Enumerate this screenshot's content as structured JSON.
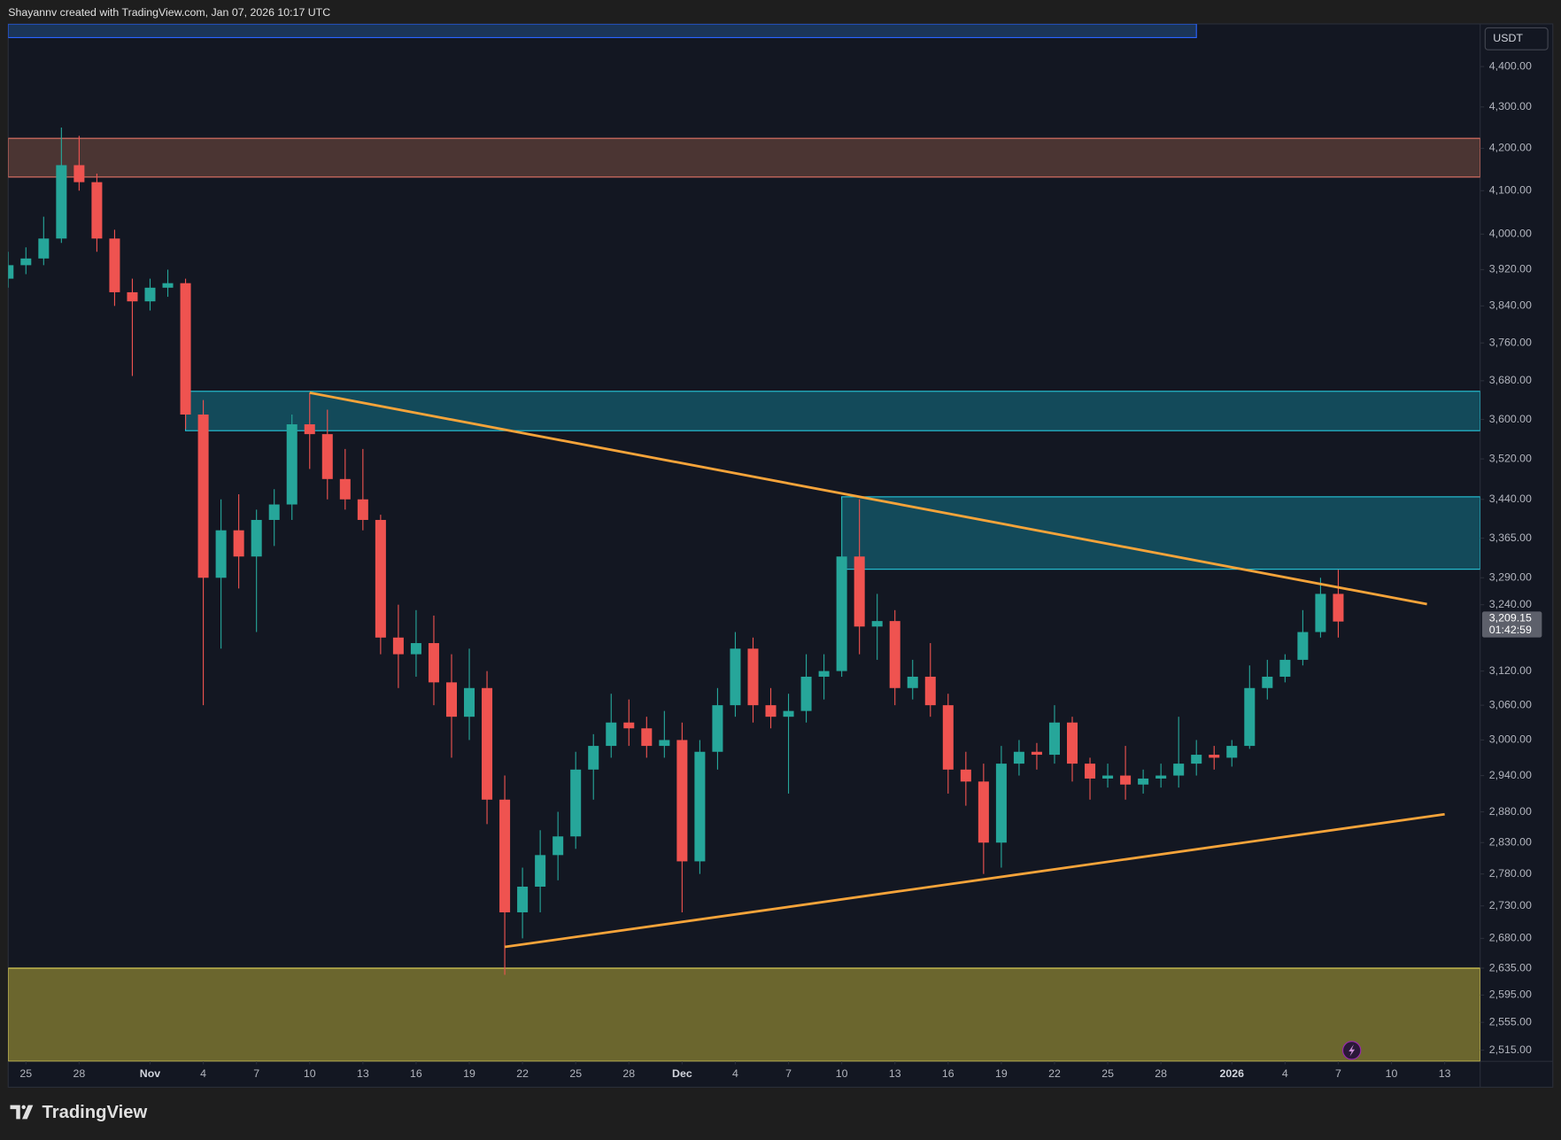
{
  "header": {
    "text": "Shayannv created with TradingView.com, Jan 07, 2026 10:17 UTC"
  },
  "footer": {
    "brand": "TradingView"
  },
  "chart_data": {
    "type": "candlestick",
    "currency": "USDT",
    "log_scale": true,
    "grid": false,
    "up_color": "#26a69a",
    "down_color": "#ef5350",
    "x": [
      "Oct 24",
      "Oct 25",
      "Oct 26",
      "Oct 27",
      "Oct 28",
      "Oct 29",
      "Oct 30",
      "Oct 31",
      "Nov 1",
      "Nov 2",
      "Nov 3",
      "Nov 4",
      "Nov 5",
      "Nov 6",
      "Nov 7",
      "Nov 8",
      "Nov 9",
      "Nov 10",
      "Nov 11",
      "Nov 12",
      "Nov 13",
      "Nov 14",
      "Nov 15",
      "Nov 16",
      "Nov 17",
      "Nov 18",
      "Nov 19",
      "Nov 20",
      "Nov 21",
      "Nov 22",
      "Nov 23",
      "Nov 24",
      "Nov 25",
      "Nov 26",
      "Nov 27",
      "Nov 28",
      "Nov 29",
      "Nov 30",
      "Dec 1",
      "Dec 2",
      "Dec 3",
      "Dec 4",
      "Dec 5",
      "Dec 6",
      "Dec 7",
      "Dec 8",
      "Dec 9",
      "Dec 10",
      "Dec 11",
      "Dec 12",
      "Dec 13",
      "Dec 14",
      "Dec 15",
      "Dec 16",
      "Dec 17",
      "Dec 18",
      "Dec 19",
      "Dec 20",
      "Dec 21",
      "Dec 22",
      "Dec 23",
      "Dec 24",
      "Dec 25",
      "Dec 26",
      "Dec 27",
      "Dec 28",
      "Dec 29",
      "Dec 30",
      "Dec 31",
      "Jan 1",
      "Jan 2",
      "Jan 3",
      "Jan 4",
      "Jan 5",
      "Jan 6",
      "Jan 7"
    ],
    "open": [
      3900,
      3930,
      3945,
      3990,
      4160,
      4120,
      3990,
      3870,
      3850,
      3880,
      3890,
      3610,
      3290,
      3380,
      3330,
      3400,
      3430,
      3590,
      3570,
      3480,
      3440,
      3400,
      3180,
      3150,
      3170,
      3100,
      3040,
      3090,
      2900,
      2720,
      2760,
      2810,
      2840,
      2950,
      2990,
      3030,
      3020,
      2990,
      3000,
      2800,
      2980,
      3060,
      3160,
      3060,
      3040,
      3050,
      3110,
      3120,
      3330,
      3200,
      3210,
      3090,
      3110,
      3060,
      2950,
      2930,
      2830,
      2960,
      2980,
      2975,
      3030,
      2960,
      2935,
      2940,
      2925,
      2935,
      2940,
      2960,
      2975,
      2970,
      2990,
      3090,
      3110,
      3140,
      3190,
      3260
    ],
    "high": [
      3960,
      3970,
      4040,
      4250,
      4230,
      4140,
      4010,
      3900,
      3900,
      3920,
      3900,
      3640,
      3440,
      3450,
      3420,
      3460,
      3610,
      3655,
      3620,
      3540,
      3540,
      3410,
      3240,
      3230,
      3220,
      3150,
      3160,
      3120,
      2940,
      2790,
      2850,
      2880,
      2980,
      3010,
      3080,
      3070,
      3040,
      3050,
      3030,
      3000,
      3090,
      3190,
      3180,
      3090,
      3080,
      3150,
      3150,
      3440,
      3440,
      3260,
      3230,
      3140,
      3170,
      3080,
      2980,
      2960,
      2990,
      3000,
      2995,
      3060,
      3040,
      2970,
      2960,
      2990,
      2950,
      2960,
      3040,
      3000,
      2990,
      3000,
      3130,
      3140,
      3150,
      3230,
      3290,
      3305
    ],
    "low": [
      3880,
      3910,
      3930,
      3980,
      4100,
      3960,
      3840,
      3690,
      3830,
      3860,
      3580,
      3060,
      3160,
      3270,
      3190,
      3350,
      3400,
      3500,
      3440,
      3420,
      3380,
      3150,
      3090,
      3110,
      3060,
      2970,
      3000,
      2860,
      2625,
      2680,
      2720,
      2770,
      2820,
      2900,
      2970,
      2990,
      2970,
      2970,
      2720,
      2780,
      2950,
      3040,
      3030,
      3020,
      2910,
      3030,
      3070,
      3110,
      3150,
      3140,
      3060,
      3070,
      3040,
      2910,
      2890,
      2780,
      2790,
      2940,
      2950,
      2960,
      2930,
      2900,
      2920,
      2900,
      2910,
      2920,
      2920,
      2940,
      2950,
      2955,
      2985,
      3070,
      3100,
      3130,
      3180,
      3180
    ],
    "close": [
      3930,
      3945,
      3990,
      4160,
      4120,
      3990,
      3870,
      3850,
      3880,
      3890,
      3610,
      3290,
      3380,
      3330,
      3400,
      3430,
      3590,
      3570,
      3480,
      3440,
      3400,
      3180,
      3150,
      3170,
      3100,
      3040,
      3090,
      2900,
      2720,
      2760,
      2810,
      2840,
      2950,
      2990,
      3030,
      3020,
      2990,
      3000,
      2800,
      2980,
      3060,
      3160,
      3060,
      3040,
      3050,
      3110,
      3120,
      3330,
      3200,
      3210,
      3090,
      3110,
      3060,
      2950,
      2930,
      2830,
      2960,
      2980,
      2975,
      3030,
      2960,
      2935,
      2940,
      2925,
      2935,
      2940,
      2960,
      2975,
      2970,
      2990,
      3090,
      3110,
      3140,
      3190,
      3260,
      3209.15
    ],
    "xlim": [
      "Oct 24",
      "Jan 15"
    ],
    "ylim": [
      2499,
      4508
    ],
    "yticks": [
      {
        "value": 4400,
        "label": "4,400.00"
      },
      {
        "value": 4300,
        "label": "4,300.00"
      },
      {
        "value": 4200,
        "label": "4,200.00"
      },
      {
        "value": 4100,
        "label": "4,100.00"
      },
      {
        "value": 4000,
        "label": "4,000.00"
      },
      {
        "value": 3920,
        "label": "3,920.00"
      },
      {
        "value": 3840,
        "label": "3,840.00"
      },
      {
        "value": 3760,
        "label": "3,760.00"
      },
      {
        "value": 3680,
        "label": "3,680.00"
      },
      {
        "value": 3600,
        "label": "3,600.00"
      },
      {
        "value": 3520,
        "label": "3,520.00"
      },
      {
        "value": 3440,
        "label": "3,440.00"
      },
      {
        "value": 3365,
        "label": "3,365.00"
      },
      {
        "value": 3290,
        "label": "3,290.00"
      },
      {
        "value": 3240,
        "label": "3,240.00"
      },
      {
        "value": 3120,
        "label": "3,120.00"
      },
      {
        "value": 3060,
        "label": "3,060.00"
      },
      {
        "value": 3000,
        "label": "3,000.00"
      },
      {
        "value": 2940,
        "label": "2,940.00"
      },
      {
        "value": 2880,
        "label": "2,880.00"
      },
      {
        "value": 2830,
        "label": "2,830.00"
      },
      {
        "value": 2780,
        "label": "2,780.00"
      },
      {
        "value": 2730,
        "label": "2,730.00"
      },
      {
        "value": 2680,
        "label": "2,680.00"
      },
      {
        "value": 2635,
        "label": "2,635.00"
      },
      {
        "value": 2595,
        "label": "2,595.00"
      },
      {
        "value": 2555,
        "label": "2,555.00"
      },
      {
        "value": 2515,
        "label": "2,515.00"
      }
    ],
    "xticks": [
      {
        "value": "Oct 25",
        "label": "25"
      },
      {
        "value": "Oct 28",
        "label": "28"
      },
      {
        "value": "Nov 1",
        "label": "Nov"
      },
      {
        "value": "Nov 4",
        "label": "4"
      },
      {
        "value": "Nov 7",
        "label": "7"
      },
      {
        "value": "Nov 10",
        "label": "10"
      },
      {
        "value": "Nov 13",
        "label": "13"
      },
      {
        "value": "Nov 16",
        "label": "16"
      },
      {
        "value": "Nov 19",
        "label": "19"
      },
      {
        "value": "Nov 22",
        "label": "22"
      },
      {
        "value": "Nov 25",
        "label": "25"
      },
      {
        "value": "Nov 28",
        "label": "28"
      },
      {
        "value": "Dec 1",
        "label": "Dec"
      },
      {
        "value": "Dec 4",
        "label": "4"
      },
      {
        "value": "Dec 7",
        "label": "7"
      },
      {
        "value": "Dec 10",
        "label": "10"
      },
      {
        "value": "Dec 13",
        "label": "13"
      },
      {
        "value": "Dec 16",
        "label": "16"
      },
      {
        "value": "Dec 19",
        "label": "19"
      },
      {
        "value": "Dec 22",
        "label": "22"
      },
      {
        "value": "Dec 25",
        "label": "25"
      },
      {
        "value": "Dec 28",
        "label": "28"
      },
      {
        "value": "Jan 1",
        "label": "2026"
      },
      {
        "value": "Jan 4",
        "label": "4"
      },
      {
        "value": "Jan 7",
        "label": "7"
      },
      {
        "value": "Jan 10",
        "label": "10"
      },
      {
        "value": "Jan 13",
        "label": "13"
      }
    ],
    "zones": [
      {
        "from": "Oct 24",
        "to": "Dec 30",
        "low": 4473,
        "high": 4508,
        "color": "#1b3557",
        "border": "#2962ff"
      },
      {
        "from": "Oct 24",
        "to": "Jan 15",
        "low": 4132,
        "high": 4224,
        "color": "#4b3533",
        "border": "#e57366"
      },
      {
        "from": "Nov 3",
        "to": "Jan 15",
        "low": 3577,
        "high": 3658,
        "color": "#134a5a",
        "border": "#26c6da"
      },
      {
        "from": "Dec 10",
        "to": "Jan 15",
        "low": 3306,
        "high": 3445,
        "color": "#134a5a",
        "border": "#26c6da"
      },
      {
        "from": "Oct 24",
        "to": "Jan 15",
        "low": 2499,
        "high": 2635,
        "color": "#6b662e",
        "border": "#e6d85a"
      }
    ],
    "lines": [
      {
        "x1": "Nov 10",
        "y1": 3655,
        "x2": "Jan 12",
        "y2": 3241,
        "color": "#f7a43a"
      },
      {
        "x1": "Nov 21",
        "y1": 2667,
        "x2": "Jan 13",
        "y2": 2876,
        "color": "#f7a43a"
      }
    ],
    "last_price": {
      "value": 3209.15,
      "label": "3,209.15"
    },
    "countdown": "01:42:59"
  }
}
